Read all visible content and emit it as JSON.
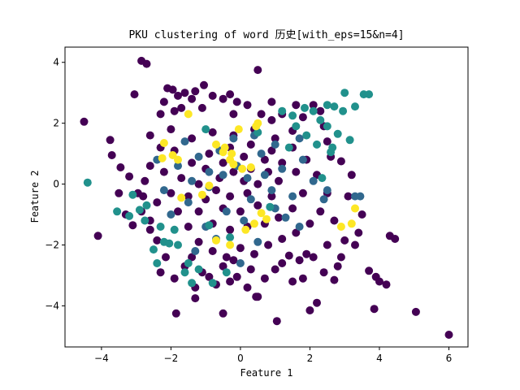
{
  "chart_data": {
    "type": "scatter",
    "title": "PKU clustering of word 历史[with_eps=15&n=4]",
    "xlabel": "Feature 1",
    "ylabel": "Feature 2",
    "xlim": [
      -5.05,
      6.55
    ],
    "ylim": [
      -5.35,
      4.5
    ],
    "xticks": [
      -4,
      -2,
      0,
      2,
      4,
      6
    ],
    "yticks": [
      -4,
      -2,
      0,
      2,
      4
    ],
    "grid": false,
    "legend": "none",
    "series": [
      {
        "cluster": 0,
        "color": "#440154",
        "points": [
          [
            -4.5,
            2.05
          ],
          [
            -4.1,
            -1.7
          ],
          [
            -3.75,
            1.45
          ],
          [
            -3.7,
            0.95
          ],
          [
            -3.45,
            0.55
          ],
          [
            -3.2,
            0.25
          ],
          [
            -3.05,
            2.95
          ],
          [
            -2.85,
            4.05
          ],
          [
            -2.7,
            3.95
          ],
          [
            -2.6,
            -1.5
          ],
          [
            -2.3,
            2.3
          ],
          [
            -2.2,
            2.7
          ],
          [
            -2.1,
            3.15
          ],
          [
            -1.95,
            3.1
          ],
          [
            -1.8,
            2.9
          ],
          [
            -1.7,
            2.5
          ],
          [
            -1.6,
            3.0
          ],
          [
            -1.4,
            2.8
          ],
          [
            -1.3,
            3.05
          ],
          [
            -1.05,
            3.25
          ],
          [
            -0.8,
            2.9
          ],
          [
            -0.5,
            2.8
          ],
          [
            -0.3,
            2.95
          ],
          [
            -0.1,
            2.7
          ],
          [
            0.2,
            2.6
          ],
          [
            0.5,
            3.75
          ],
          [
            0.6,
            2.3
          ],
          [
            0.9,
            2.1
          ],
          [
            1.2,
            2.3
          ],
          [
            -2.0,
            1.8
          ],
          [
            -2.3,
            1.2
          ],
          [
            -2.6,
            0.6
          ],
          [
            -2.75,
            0.1
          ],
          [
            -2.95,
            -0.3
          ],
          [
            -2.85,
            -0.9
          ],
          [
            -2.6,
            -1.2
          ],
          [
            -2.4,
            -1.85
          ],
          [
            -2.15,
            -2.4
          ],
          [
            -1.9,
            -3.1
          ],
          [
            -1.6,
            -2.7
          ],
          [
            -1.3,
            -3.4
          ],
          [
            -1.1,
            -2.9
          ],
          [
            -0.9,
            -3.05
          ],
          [
            -0.7,
            -3.3
          ],
          [
            -0.5,
            -2.7
          ],
          [
            -0.3,
            -3.2
          ],
          [
            -0.1,
            -3.05
          ],
          [
            0.2,
            -3.4
          ],
          [
            0.5,
            -3.7
          ],
          [
            0.7,
            -3.1
          ],
          [
            1.0,
            -2.8
          ],
          [
            1.2,
            -2.6
          ],
          [
            1.5,
            -3.2
          ],
          [
            1.7,
            -2.5
          ],
          [
            1.9,
            -2.3
          ],
          [
            2.1,
            -2.4
          ],
          [
            2.4,
            -2.9
          ],
          [
            2.7,
            -3.15
          ],
          [
            2.2,
            -3.9
          ],
          [
            2.0,
            -4.15
          ],
          [
            1.05,
            -4.5
          ],
          [
            0.45,
            -3.7
          ],
          [
            -0.5,
            -4.25
          ],
          [
            -1.85,
            -4.25
          ],
          [
            -1.3,
            -3.75
          ],
          [
            3.3,
            -2.0
          ],
          [
            3.0,
            -1.85
          ],
          [
            2.9,
            -2.4
          ],
          [
            3.7,
            -2.85
          ],
          [
            3.9,
            -3.05
          ],
          [
            4.0,
            -3.2
          ],
          [
            4.2,
            -3.3
          ],
          [
            3.85,
            -4.1
          ],
          [
            4.3,
            -1.7
          ],
          [
            4.45,
            -1.8
          ],
          [
            5.05,
            -4.2
          ],
          [
            6.0,
            -4.95
          ],
          [
            3.1,
            -0.4
          ],
          [
            3.2,
            0.3
          ],
          [
            2.9,
            0.75
          ],
          [
            2.5,
            1.4
          ],
          [
            2.4,
            1.9
          ],
          [
            2.3,
            2.4
          ],
          [
            2.1,
            2.6
          ],
          [
            1.8,
            2.2
          ],
          [
            1.5,
            1.75
          ],
          [
            1.0,
            1.5
          ],
          [
            0.4,
            1.8
          ],
          [
            -0.2,
            1.6
          ],
          [
            -0.8,
            1.7
          ],
          [
            -1.4,
            1.5
          ],
          [
            -1.9,
            1.1
          ],
          [
            -2.2,
            0.4
          ],
          [
            -2.0,
            -0.3
          ],
          [
            -1.8,
            -0.9
          ],
          [
            -1.5,
            -1.4
          ],
          [
            -1.2,
            -1.9
          ],
          [
            -0.8,
            -2.2
          ],
          [
            -0.4,
            -2.4
          ],
          [
            0.0,
            -2.1
          ],
          [
            0.4,
            -2.3
          ],
          [
            0.8,
            -2.0
          ],
          [
            1.2,
            -1.8
          ],
          [
            1.6,
            -1.6
          ],
          [
            2.0,
            -1.3
          ],
          [
            2.3,
            -0.9
          ],
          [
            2.5,
            -0.3
          ],
          [
            2.2,
            0.3
          ],
          [
            1.9,
            0.8
          ],
          [
            1.5,
            1.2
          ],
          [
            0.9,
            1.1
          ],
          [
            0.3,
            1.3
          ],
          [
            -0.3,
            1.2
          ],
          [
            -0.9,
            1.0
          ],
          [
            -1.4,
            0.7
          ],
          [
            -1.7,
            0.2
          ],
          [
            -1.5,
            -0.4
          ],
          [
            -1.2,
            -0.9
          ],
          [
            -0.8,
            -1.3
          ],
          [
            -0.3,
            -1.5
          ],
          [
            0.2,
            -1.4
          ],
          [
            0.7,
            -1.3
          ],
          [
            1.1,
            -1.1
          ],
          [
            1.5,
            -0.8
          ],
          [
            1.8,
            -0.3
          ],
          [
            1.6,
            0.4
          ],
          [
            1.2,
            0.7
          ],
          [
            0.7,
            0.8
          ],
          [
            0.1,
            0.9
          ],
          [
            -0.5,
            0.7
          ],
          [
            -1.0,
            0.5
          ],
          [
            -1.2,
            0.0
          ],
          [
            -1.0,
            -0.5
          ],
          [
            -0.5,
            -0.8
          ],
          [
            0.0,
            -0.9
          ],
          [
            0.5,
            -0.7
          ],
          [
            0.9,
            -0.4
          ],
          [
            1.1,
            0.1
          ],
          [
            0.8,
            0.4
          ],
          [
            0.3,
            0.5
          ],
          [
            -0.2,
            0.4
          ],
          [
            -0.6,
            0.2
          ],
          [
            -0.7,
            -0.2
          ],
          [
            -0.3,
            -0.4
          ],
          [
            0.2,
            -0.3
          ],
          [
            0.5,
            0.0
          ],
          [
            0.1,
            0.1
          ],
          [
            -2.6,
            1.6
          ],
          [
            -2.4,
            -0.6
          ],
          [
            -1.9,
            2.4
          ],
          [
            -1.1,
            2.5
          ],
          [
            -0.2,
            2.3
          ],
          [
            0.9,
            2.7
          ],
          [
            1.6,
            2.6
          ],
          [
            2.7,
            -1.2
          ],
          [
            2.6,
            0.9
          ],
          [
            -2.8,
            -0.4
          ],
          [
            -2.3,
            -2.9
          ],
          [
            -1.4,
            -2.4
          ],
          [
            0.3,
            -2.8
          ],
          [
            1.4,
            -2.35
          ],
          [
            2.5,
            -2.0
          ],
          [
            3.5,
            -1.0
          ],
          [
            3.4,
            -1.6
          ],
          [
            2.8,
            -2.7
          ],
          [
            1.8,
            -3.1
          ],
          [
            -0.2,
            -2.5
          ],
          [
            -3.3,
            -1.0
          ],
          [
            -3.5,
            -0.3
          ],
          [
            -3.1,
            -1.35
          ]
        ]
      },
      {
        "cluster": 1,
        "color": "#31688e",
        "points": [
          [
            -2.2,
            -0.2
          ],
          [
            -1.8,
            0.6
          ],
          [
            -1.5,
            -0.6
          ],
          [
            -1.2,
            0.9
          ],
          [
            -0.9,
            -0.1
          ],
          [
            -0.6,
            1.1
          ],
          [
            -0.4,
            -0.9
          ],
          [
            -0.1,
            0.6
          ],
          [
            0.3,
            -0.5
          ],
          [
            0.6,
            1.0
          ],
          [
            0.9,
            -0.2
          ],
          [
            1.2,
            0.5
          ],
          [
            1.5,
            -0.4
          ],
          [
            1.8,
            0.8
          ],
          [
            2.1,
            0.1
          ],
          [
            -1.0,
            -1.4
          ],
          [
            -0.5,
            0.3
          ],
          [
            0.1,
            -1.2
          ],
          [
            0.7,
            0.3
          ],
          [
            1.3,
            -1.1
          ],
          [
            -1.6,
            1.4
          ],
          [
            -0.2,
            1.5
          ],
          [
            0.4,
            1.6
          ],
          [
            1.0,
            1.3
          ],
          [
            1.7,
            1.5
          ],
          [
            -2.0,
            -1.0
          ],
          [
            -0.7,
            -1.8
          ],
          [
            0.5,
            -1.9
          ],
          [
            1.7,
            -1.4
          ],
          [
            2.4,
            -0.5
          ],
          [
            2.5,
            -0.2
          ],
          [
            3.3,
            -0.4
          ],
          [
            3.45,
            -0.4
          ],
          [
            -1.3,
            -2.2
          ],
          [
            0.0,
            -2.6
          ],
          [
            -2.4,
            0.8
          ],
          [
            -0.9,
            0.4
          ],
          [
            0.2,
            0.2
          ],
          [
            1.0,
            -0.8
          ],
          [
            -1.4,
            0.1
          ]
        ]
      },
      {
        "cluster": 2,
        "color": "#21918c",
        "points": [
          [
            -4.4,
            0.05
          ],
          [
            -3.55,
            -0.9
          ],
          [
            -3.2,
            -1.05
          ],
          [
            -3.1,
            -0.35
          ],
          [
            -2.9,
            -0.85
          ],
          [
            -2.75,
            -1.2
          ],
          [
            -2.5,
            -2.15
          ],
          [
            -2.2,
            -1.9
          ],
          [
            -2.05,
            -1.95
          ],
          [
            -1.8,
            -2.0
          ],
          [
            -1.5,
            -2.6
          ],
          [
            -1.4,
            -3.25
          ],
          [
            -1.2,
            -2.8
          ],
          [
            -0.8,
            -3.25
          ],
          [
            -0.4,
            -2.9
          ],
          [
            1.2,
            2.4
          ],
          [
            1.5,
            2.25
          ],
          [
            1.85,
            2.5
          ],
          [
            2.1,
            2.4
          ],
          [
            2.3,
            2.1
          ],
          [
            2.5,
            1.9
          ],
          [
            2.5,
            2.6
          ],
          [
            2.7,
            2.55
          ],
          [
            2.95,
            2.4
          ],
          [
            3.0,
            3.0
          ],
          [
            2.65,
            1.2
          ],
          [
            2.8,
            1.65
          ],
          [
            3.15,
            1.45
          ],
          [
            3.3,
            2.55
          ],
          [
            3.55,
            2.95
          ],
          [
            3.7,
            2.95
          ],
          [
            2.2,
            1.3
          ],
          [
            1.9,
            1.6
          ],
          [
            1.6,
            1.9
          ],
          [
            1.4,
            1.2
          ],
          [
            -2.7,
            -0.7
          ],
          [
            -2.3,
            -1.4
          ],
          [
            -1.9,
            -1.5
          ],
          [
            -1.6,
            -2.9
          ],
          [
            -2.4,
            -2.6
          ],
          [
            -1.0,
            1.8
          ],
          [
            0.5,
            1.7
          ],
          [
            2.6,
            1.05
          ],
          [
            -0.3,
            -1.75
          ],
          [
            0.85,
            -0.75
          ],
          [
            -0.9,
            -1.35
          ],
          [
            2.35,
            0.2
          ]
        ]
      },
      {
        "cluster": 3,
        "color": "#fde725",
        "points": [
          [
            -2.25,
            0.85
          ],
          [
            -2.2,
            1.35
          ],
          [
            -1.95,
            0.95
          ],
          [
            -1.8,
            0.8
          ],
          [
            -1.5,
            2.3
          ],
          [
            -0.7,
            1.3
          ],
          [
            -0.5,
            1.05
          ],
          [
            -0.45,
            1.2
          ],
          [
            -0.3,
            0.8
          ],
          [
            -0.25,
            1.0
          ],
          [
            -0.2,
            0.65
          ],
          [
            0.05,
            0.5
          ],
          [
            0.3,
            0.55
          ],
          [
            0.45,
            1.9
          ],
          [
            0.5,
            2.0
          ],
          [
            -0.05,
            1.8
          ],
          [
            -1.7,
            -0.45
          ],
          [
            -1.1,
            -0.35
          ],
          [
            -0.9,
            -0.05
          ],
          [
            0.4,
            -1.3
          ],
          [
            0.6,
            -0.95
          ],
          [
            0.75,
            -1.15
          ],
          [
            2.9,
            -1.4
          ],
          [
            3.3,
            -0.8
          ],
          [
            3.2,
            -1.3
          ],
          [
            -0.3,
            -2.0
          ],
          [
            0.15,
            -1.5
          ],
          [
            -0.7,
            -1.85
          ]
        ]
      }
    ]
  }
}
